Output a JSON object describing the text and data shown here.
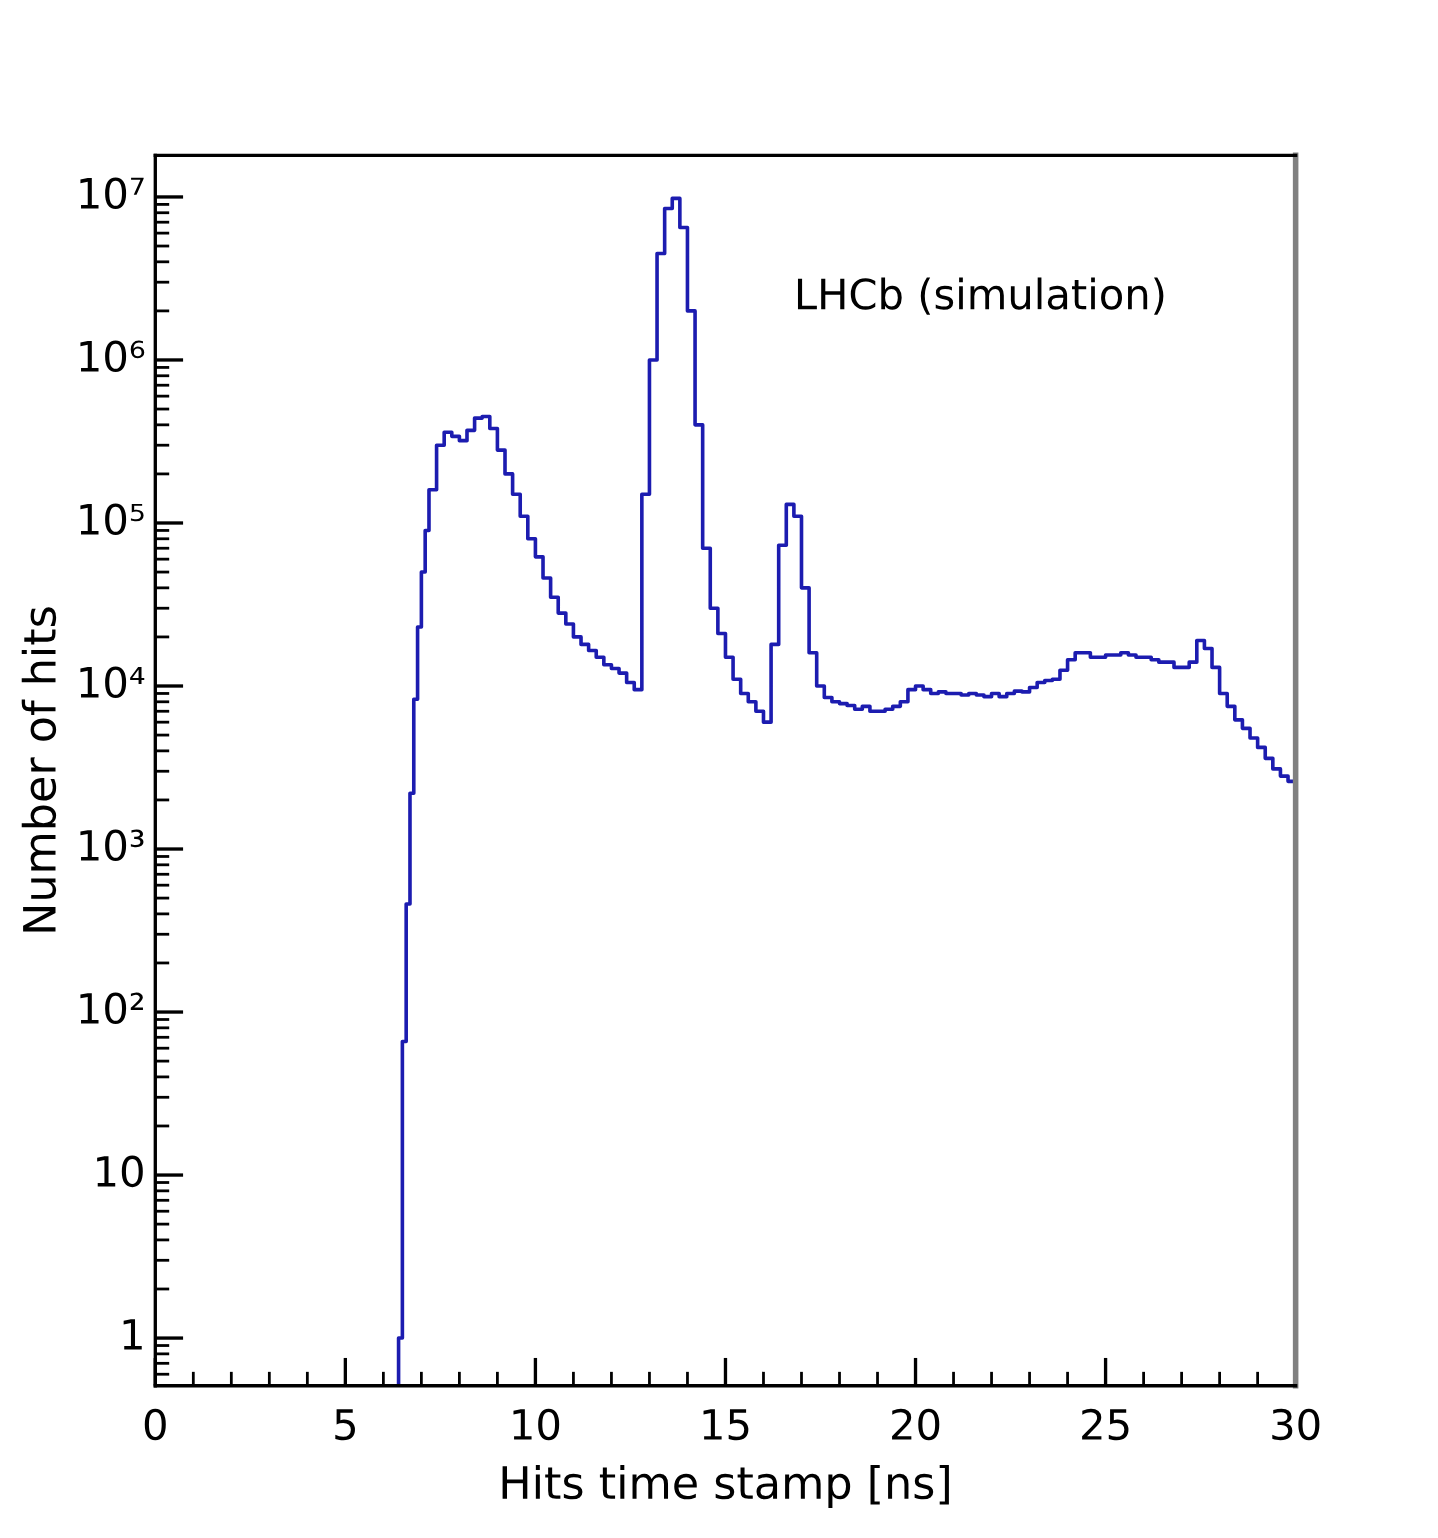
{
  "chart_data": {
    "type": "histogram",
    "xlabel": "Hits time stamp [ns]",
    "ylabel": "Number of hits",
    "annotations": [
      "LHCb (simulation)"
    ],
    "color": "#1c1cb0",
    "log": "y",
    "grid": false,
    "xlim": [
      0,
      30
    ],
    "xticks": [
      0,
      {
        "value": 1,
        "label": null
      },
      {
        "value": 2,
        "label": null
      },
      {
        "value": 3,
        "label": null
      },
      {
        "value": 4,
        "label": null
      },
      5,
      {
        "value": 6,
        "label": null
      },
      {
        "value": 7,
        "label": null
      },
      {
        "value": 8,
        "label": null
      },
      {
        "value": 9,
        "label": null
      },
      10,
      {
        "value": 11,
        "label": null
      },
      {
        "value": 12,
        "label": null
      },
      {
        "value": 13,
        "label": null
      },
      {
        "value": 14,
        "label": null
      },
      15,
      {
        "value": 16,
        "label": null
      },
      {
        "value": 17,
        "label": null
      },
      {
        "value": 18,
        "label": null
      },
      {
        "value": 19,
        "label": null
      },
      20,
      {
        "value": 21,
        "label": null
      },
      {
        "value": 22,
        "label": null
      },
      {
        "value": 23,
        "label": null
      },
      {
        "value": 24,
        "label": null
      },
      25,
      {
        "value": 26,
        "label": null
      },
      {
        "value": 27,
        "label": null
      },
      {
        "value": 28,
        "label": null
      },
      {
        "value": 29,
        "label": null
      },
      30
    ],
    "ylim": [
      0.51,
      18000000
    ],
    "yticks": [
      1,
      10,
      {
        "value": 100,
        "label": "10²"
      },
      {
        "value": 1000,
        "label": "10³"
      },
      {
        "value": 10000,
        "label": "10⁴"
      },
      {
        "value": 100000,
        "label": "10⁵"
      },
      {
        "value": 1000000,
        "label": "10⁶"
      },
      {
        "value": 10000000,
        "label": "10⁷"
      }
    ],
    "bins": [
      6.4,
      6.5,
      6.6,
      6.7,
      6.8,
      6.9,
      7.0,
      7.1,
      7.2,
      7.4,
      7.6,
      7.8,
      8.0,
      8.2,
      8.4,
      8.6,
      8.8,
      9.0,
      9.2,
      9.4,
      9.6,
      9.8,
      10.0,
      10.2,
      10.4,
      10.6,
      10.8,
      11.0,
      11.2,
      11.4,
      11.6,
      11.8,
      12.0,
      12.2,
      12.4,
      12.6,
      12.8,
      13.0,
      13.2,
      13.4,
      13.6,
      13.8,
      14.0,
      14.2,
      14.4,
      14.6,
      14.8,
      15.0,
      15.2,
      15.4,
      15.6,
      15.8,
      16.0,
      16.2,
      16.4,
      16.6,
      16.8,
      17.0,
      17.2,
      17.4,
      17.6,
      17.8,
      18.0,
      18.2,
      18.4,
      18.6,
      18.8,
      19.0,
      19.2,
      19.4,
      19.6,
      19.8,
      20.0,
      20.2,
      20.4,
      20.6,
      20.8,
      21.0,
      21.2,
      21.4,
      21.6,
      21.8,
      22.0,
      22.2,
      22.4,
      22.6,
      22.8,
      23.0,
      23.2,
      23.4,
      23.6,
      23.8,
      24.0,
      24.2,
      24.4,
      24.6,
      24.8,
      25.0,
      25.2,
      25.4,
      25.6,
      25.8,
      26.0,
      26.2,
      26.4,
      26.6,
      26.8,
      27.0,
      27.2,
      27.4,
      27.6,
      27.8,
      28.0,
      28.2,
      28.4,
      28.6,
      28.8,
      29.0,
      29.2,
      29.4,
      29.6,
      29.8,
      30.0
    ],
    "values": [
      1,
      66,
      460,
      2200,
      8300,
      23000,
      50000,
      90000,
      160000,
      300000,
      360000,
      340000,
      320000,
      370000,
      440000,
      450000,
      380000,
      280000,
      200000,
      150000,
      110000,
      80000,
      62000,
      46000,
      35000,
      28000,
      24000,
      20000,
      18000,
      16500,
      15000,
      13500,
      12800,
      12000,
      10500,
      9500,
      150000,
      1000000,
      4500000,
      8500000,
      9800000,
      6500000,
      2000000,
      400000,
      70000,
      30000,
      21000,
      15000,
      11000,
      9000,
      8000,
      7000,
      6000,
      18000,
      73000,
      130000,
      110000,
      40000,
      16000,
      10000,
      8500,
      8000,
      7800,
      7600,
      7200,
      7500,
      7000,
      7000,
      7200,
      7500,
      8000,
      9500,
      10000,
      9500,
      9000,
      9200,
      9000,
      9000,
      8800,
      9000,
      8800,
      8600,
      9000,
      8600,
      9000,
      9300,
      9200,
      9800,
      10500,
      10800,
      11000,
      12500,
      14500,
      16000,
      16000,
      15000,
      15000,
      15500,
      15500,
      16000,
      15500,
      15000,
      15000,
      14500,
      14000,
      14000,
      13000,
      13000,
      14000,
      19000,
      17000,
      13000,
      9000,
      7500,
      6200,
      5500,
      4800,
      4200,
      3600,
      3100,
      2800,
      2600
    ]
  }
}
